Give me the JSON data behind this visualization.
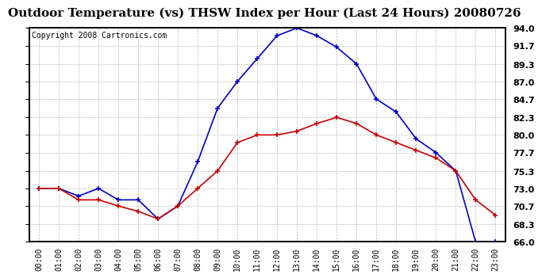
{
  "title": "Outdoor Temperature (vs) THSW Index per Hour (Last 24 Hours) 20080726",
  "copyright": "Copyright 2008 Cartronics.com",
  "hours": [
    "00:00",
    "01:00",
    "02:00",
    "03:00",
    "04:00",
    "05:00",
    "06:00",
    "07:00",
    "08:00",
    "09:00",
    "10:00",
    "11:00",
    "12:00",
    "13:00",
    "14:00",
    "15:00",
    "16:00",
    "17:00",
    "18:00",
    "19:00",
    "20:00",
    "21:00",
    "22:00",
    "23:00"
  ],
  "temp": [
    73.0,
    73.0,
    71.5,
    71.5,
    70.7,
    70.0,
    69.0,
    70.7,
    73.0,
    75.3,
    79.0,
    80.0,
    80.0,
    80.5,
    81.5,
    82.3,
    81.5,
    80.0,
    79.0,
    78.0,
    77.0,
    75.3,
    71.5,
    69.5
  ],
  "thsw": [
    73.0,
    73.0,
    72.0,
    73.0,
    71.5,
    71.5,
    69.0,
    70.7,
    76.5,
    83.5,
    87.0,
    90.0,
    93.0,
    94.0,
    93.0,
    91.5,
    89.3,
    84.7,
    83.0,
    79.5,
    77.7,
    75.3,
    66.0,
    66.0
  ],
  "temp_color": "#cc0000",
  "thsw_color": "#0000cc",
  "bg_color": "#ffffff",
  "grid_color": "#bbbbbb",
  "ylim_min": 66.0,
  "ylim_max": 94.0,
  "yticks": [
    66.0,
    68.3,
    70.7,
    73.0,
    75.3,
    77.7,
    80.0,
    82.3,
    84.7,
    87.0,
    89.3,
    91.7,
    94.0
  ],
  "title_fontsize": 11,
  "copyright_fontsize": 7
}
